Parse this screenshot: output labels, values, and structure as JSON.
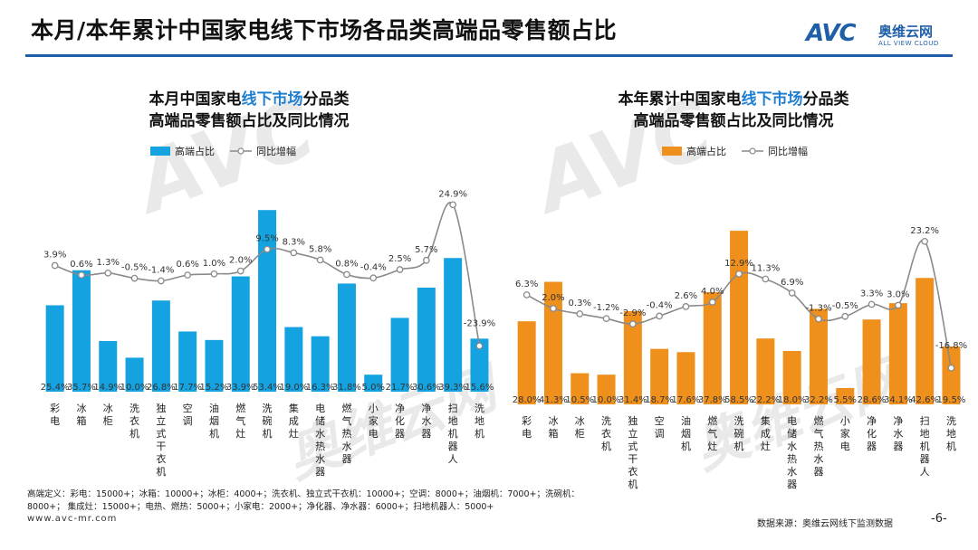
{
  "page": {
    "title": "本月/本年累计中国家电线下市场各品类高端品零售额占比",
    "logo_mark": "AVC",
    "logo_cn": "奥维云网",
    "logo_en": "ALL VIEW CLOUD",
    "footnote": "高端定义：彩电：15000+；冰箱：10000+；冰柜：4000+；洗衣机、独立式干衣机：10000+；空调：8000+；油烟机：7000+；洗碗机：8000+；    集成灶：15000+；电热、燃热：5000+；小家电：2000+；净化器、净水器：6000+；扫地机器人：5000+",
    "url": "www.avc-mr.com",
    "source": "数据来源：奥维云网线下监测数据",
    "page_number": "-6-",
    "watermark_mark": "AVC",
    "watermark_cn": "奥维云网",
    "watermark_en": "ALL VIEW CLOUD"
  },
  "chart_data": [
    {
      "type": "bar+line",
      "title_line1_pre": "本月中国家电",
      "title_line1_hl": "线下市场",
      "title_line1_post": "分品类",
      "title_line2": "高端品零售额占比及同比情况",
      "legend": [
        "高端占比",
        "同比增幅"
      ],
      "bar_color": "#14a3e0",
      "categories": [
        "彩电",
        "冰箱",
        "冰柜",
        "洗衣机",
        "独立式干衣机",
        "空调",
        "油烟机",
        "燃气灶",
        "洗碗机",
        "集成灶",
        "电储水热水器",
        "燃气热水器",
        "小家电",
        "净化器",
        "净水器",
        "扫地机器人",
        "洗地机"
      ],
      "bar_labels": [
        "25.4%",
        "35.7%",
        "14.9%",
        "10.0%",
        "26.8%",
        "17.7%",
        "15.2%",
        "33.9%",
        "53.4%",
        "19.0%",
        "16.3%",
        "31.8%",
        "5.0%",
        "21.7%",
        "30.6%",
        "39.3%",
        "15.6%"
      ],
      "line_labels": [
        "3.9%",
        "0.6%",
        "1.3%",
        "-0.5%",
        "-1.4%",
        "0.6%",
        "1.0%",
        "2.0%",
        "9.5%",
        "8.3%",
        "5.8%",
        "0.8%",
        "-0.4%",
        "2.5%",
        "5.7%",
        "24.9%",
        "-23.9%"
      ],
      "bar_values": [
        25.4,
        35.7,
        14.9,
        10.0,
        26.8,
        17.7,
        15.2,
        33.9,
        53.4,
        19.0,
        16.3,
        31.8,
        5.0,
        21.7,
        30.6,
        39.3,
        15.6
      ],
      "line_values": [
        3.9,
        0.6,
        1.3,
        -0.5,
        -1.4,
        0.6,
        1.0,
        2.0,
        9.5,
        8.3,
        5.8,
        0.8,
        -0.4,
        2.5,
        5.7,
        24.9,
        -23.9
      ]
    },
    {
      "type": "bar+line",
      "title_line1_pre": "本年累计中国家电",
      "title_line1_hl": "线下市场",
      "title_line1_post": "分品类",
      "title_line2": "高端品零售额占比及同比情况",
      "legend": [
        "高端占比",
        "同比增幅"
      ],
      "bar_color": "#ef8f1c",
      "categories": [
        "彩电",
        "冰箱",
        "冰柜",
        "洗衣机",
        "独立式干衣机",
        "空调",
        "油烟机",
        "燃气灶",
        "洗碗机",
        "集成灶",
        "电储水热水器",
        "燃气热水器",
        "小家电",
        "净化器",
        "净水器",
        "扫地机器人",
        "洗地机"
      ],
      "bar_labels": [
        "28.0%",
        "41.3%",
        "10.5%",
        "10.0%",
        "31.4%",
        "18.7%",
        "17.6%",
        "37.8%",
        "58.5%",
        "22.2%",
        "18.0%",
        "32.2%",
        "5.5%",
        "28.6%",
        "34.1%",
        "42.6%",
        "19.5%"
      ],
      "line_labels": [
        "6.3%",
        "2.0%",
        "0.3%",
        "-1.2%",
        "-2.9%",
        "-0.4%",
        "2.6%",
        "4.0%",
        "12.9%",
        "11.3%",
        "6.9%",
        "-1.3%",
        "-0.5%",
        "3.3%",
        "3.0%",
        "23.2%",
        "-16.8%"
      ],
      "bar_values": [
        28.0,
        41.3,
        10.5,
        10.0,
        31.4,
        18.7,
        17.6,
        37.8,
        58.5,
        22.2,
        18.0,
        32.2,
        5.5,
        28.6,
        34.1,
        42.6,
        19.5
      ],
      "line_values": [
        6.3,
        2.0,
        0.3,
        -1.2,
        -2.9,
        -0.4,
        2.6,
        4.0,
        12.9,
        11.3,
        6.9,
        -1.3,
        -0.5,
        3.3,
        3.0,
        23.2,
        -16.8
      ]
    }
  ]
}
